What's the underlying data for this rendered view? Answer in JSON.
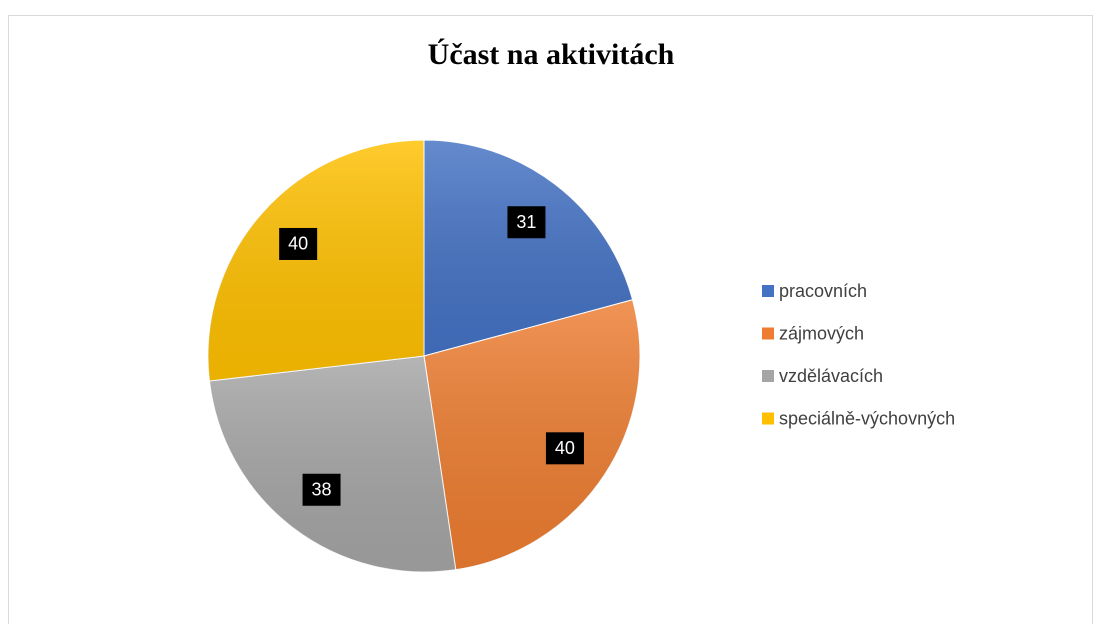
{
  "chart_data": {
    "type": "pie",
    "title": "Účast na aktivitách",
    "categories": [
      "pracovních",
      "zájmových",
      "vzdělávacích",
      "speciálně-výchovných"
    ],
    "values": [
      31,
      40,
      38,
      40
    ],
    "colors": [
      "#4472c4",
      "#ed7d31",
      "#a5a5a5",
      "#ffc000"
    ],
    "legend": "right"
  }
}
